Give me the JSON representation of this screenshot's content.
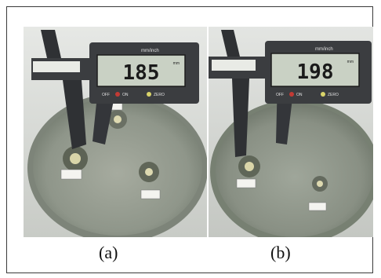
{
  "figure": {
    "panels": [
      {
        "caption": "(a)",
        "caliper": {
          "brand": "mm/inch",
          "lcd_reading": "185",
          "lcd_unit": "mm",
          "buttons": [
            "OFF",
            "ON",
            "ZERO"
          ]
        },
        "sample_labels": [
          "",
          "",
          ""
        ]
      },
      {
        "caption": "(b)",
        "caliper": {
          "brand": "mm/inch",
          "lcd_reading": "198",
          "lcd_unit": "mm",
          "buttons": [
            "OFF",
            "ON",
            "ZERO"
          ]
        },
        "sample_labels": [
          "",
          ""
        ]
      }
    ]
  },
  "colors": {
    "agar_plate": "#8f968a",
    "caliper_body": "#3b3d40",
    "lcd_screen": "#c9d1c4",
    "background_wall": "#d9dbd8"
  }
}
